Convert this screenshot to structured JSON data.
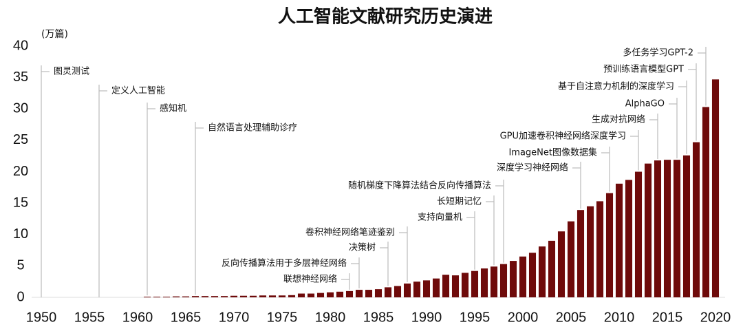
{
  "chart_data": {
    "type": "bar",
    "title": "人工智能文献研究历史演进",
    "unit_label": "(万篇)",
    "color": "#6e0a0a",
    "x": [
      1961,
      1962,
      1963,
      1964,
      1965,
      1966,
      1967,
      1968,
      1969,
      1970,
      1971,
      1972,
      1973,
      1974,
      1975,
      1976,
      1977,
      1978,
      1979,
      1980,
      1981,
      1982,
      1983,
      1984,
      1985,
      1986,
      1987,
      1988,
      1989,
      1990,
      1991,
      1992,
      1993,
      1994,
      1995,
      1996,
      1997,
      1998,
      1999,
      2000,
      2001,
      2002,
      2003,
      2004,
      2005,
      2006,
      2007,
      2008,
      2009,
      2010,
      2011,
      2012,
      2013,
      2014,
      2015,
      2016,
      2017,
      2018,
      2019,
      2020
    ],
    "values": [
      0.1,
      0.1,
      0.1,
      0.15,
      0.15,
      0.2,
      0.2,
      0.2,
      0.2,
      0.25,
      0.25,
      0.25,
      0.3,
      0.3,
      0.3,
      0.35,
      0.6,
      0.6,
      0.7,
      0.8,
      0.9,
      1.0,
      1.2,
      1.2,
      1.3,
      1.6,
      1.8,
      2.2,
      2.5,
      2.7,
      3.0,
      3.6,
      3.5,
      3.9,
      4.2,
      4.6,
      4.9,
      5.3,
      5.8,
      6.5,
      7.1,
      8.1,
      9.0,
      10.5,
      12.1,
      13.9,
      14.5,
      15.3,
      16.6,
      18.1,
      18.7,
      20.0,
      21.3,
      21.8,
      21.9,
      21.9,
      22.6,
      24.7,
      30.3,
      34.7
    ],
    "xlim": [
      1949,
      2021
    ],
    "xticks": [
      1950,
      1955,
      1960,
      1965,
      1970,
      1975,
      1980,
      1985,
      1990,
      1995,
      2000,
      2005,
      2010,
      2015,
      2020
    ],
    "ylim": [
      0,
      40
    ],
    "yticks": [
      0,
      5,
      10,
      15,
      20,
      25,
      30,
      35,
      40
    ],
    "annotations": [
      {
        "text": "图灵测试",
        "x": 1950
      },
      {
        "text": "定义人工智能",
        "x": 1956
      },
      {
        "text": "感知机",
        "x": 1961
      },
      {
        "text": "自然语言处理辅助诊疗",
        "x": 1966
      },
      {
        "text": "联想神经网络",
        "x": 1982
      },
      {
        "text": "反向传播算法用于多层神经网络",
        "x": 1983
      },
      {
        "text": "决策树",
        "x": 1986
      },
      {
        "text": "卷积神经网络笔迹鉴别",
        "x": 1988
      },
      {
        "text": "支持向量机",
        "x": 1995
      },
      {
        "text": "长短期记忆",
        "x": 1997
      },
      {
        "text": "随机梯度下降算法结合反向传播算法",
        "x": 1998
      },
      {
        "text": "深度学习神经网络",
        "x": 2006
      },
      {
        "text": "ImageNet图像数据集",
        "x": 2009
      },
      {
        "text": "GPU加速卷积神经网络深度学习",
        "x": 2012
      },
      {
        "text": "生成对抗网络",
        "x": 2014
      },
      {
        "text": "AlphaGO",
        "x": 2016
      },
      {
        "text": "基于自注意力机制的深度学习",
        "x": 2017
      },
      {
        "text": "预训练语言模型GPT",
        "x": 2018
      },
      {
        "text": "多任务学习GPT-2",
        "x": 2019
      }
    ]
  }
}
